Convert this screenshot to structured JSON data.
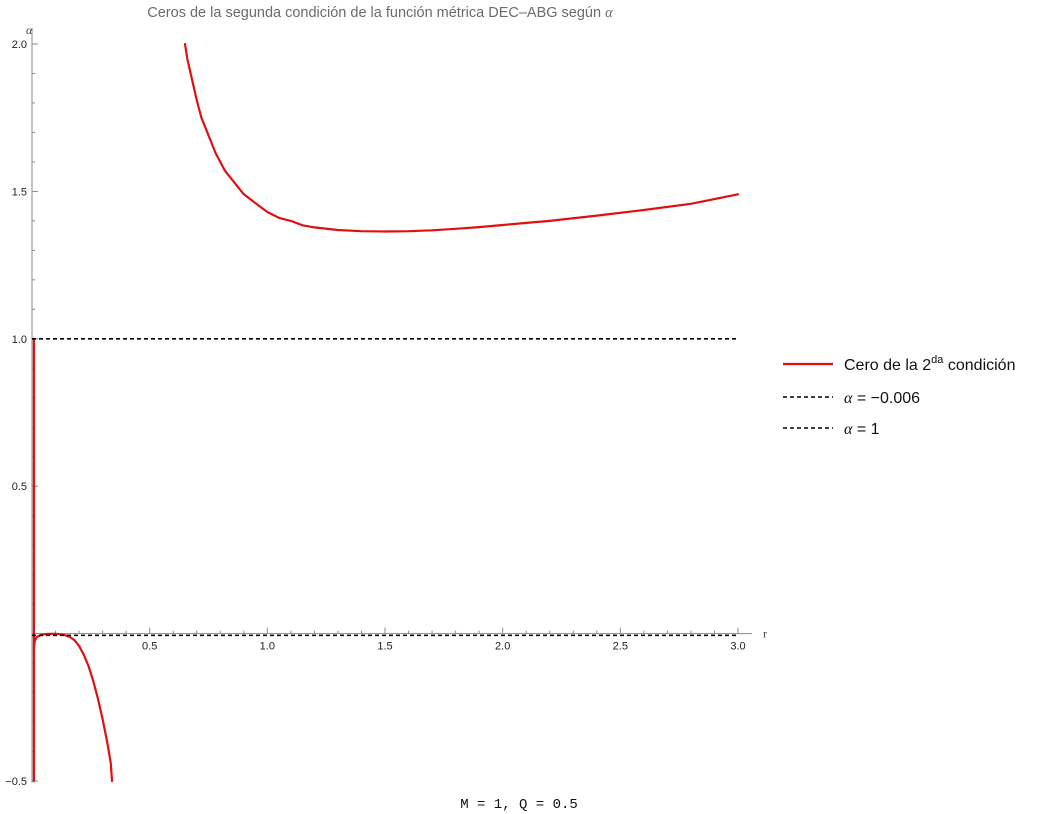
{
  "chart_data": {
    "type": "line",
    "title_text": "Ceros de la segunda condición de la función métrica DEC–ABG según ",
    "title_symbol": "α",
    "xlabel": "r",
    "ylabel": "α",
    "xlim": [
      0,
      3.0
    ],
    "ylim": [
      -0.5,
      2.0
    ],
    "x_ticks": [
      {
        "value": 0.5,
        "label": "0.5"
      },
      {
        "value": 1.0,
        "label": "1.0"
      },
      {
        "value": 1.5,
        "label": "1.5"
      },
      {
        "value": 2.0,
        "label": "2.0"
      },
      {
        "value": 2.5,
        "label": "2.5"
      },
      {
        "value": 3.0,
        "label": "3.0"
      }
    ],
    "y_ticks": [
      {
        "value": -0.5,
        "label": "-0.5"
      },
      {
        "value": 0.5,
        "label": "0.5"
      },
      {
        "value": 1.0,
        "label": "1.0"
      },
      {
        "value": 1.5,
        "label": "1.5"
      },
      {
        "value": 2.0,
        "label": "2.0"
      }
    ],
    "series": [
      {
        "name": "Cero de la 2da condición",
        "color": "#e01010",
        "style": "solid",
        "segments": [
          [
            [
              0.65,
              2.0
            ],
            [
              0.66,
              1.95
            ],
            [
              0.68,
              1.88
            ],
            [
              0.7,
              1.81
            ],
            [
              0.72,
              1.75
            ],
            [
              0.75,
              1.69
            ],
            [
              0.78,
              1.63
            ],
            [
              0.82,
              1.57
            ],
            [
              0.86,
              1.53
            ],
            [
              0.9,
              1.49
            ],
            [
              0.95,
              1.46
            ],
            [
              1.0,
              1.43
            ],
            [
              1.05,
              1.41
            ],
            [
              1.1,
              1.4
            ],
            [
              1.15,
              1.385
            ],
            [
              1.2,
              1.378
            ],
            [
              1.3,
              1.369
            ],
            [
              1.4,
              1.365
            ],
            [
              1.5,
              1.364
            ],
            [
              1.6,
              1.365
            ],
            [
              1.7,
              1.368
            ],
            [
              1.8,
              1.373
            ],
            [
              1.9,
              1.379
            ],
            [
              2.0,
              1.386
            ],
            [
              2.2,
              1.4
            ],
            [
              2.4,
              1.418
            ],
            [
              2.6,
              1.437
            ],
            [
              2.8,
              1.458
            ],
            [
              3.0,
              1.49
            ]
          ],
          [
            [
              0.008,
              1.0
            ],
            [
              0.008,
              0.5
            ],
            [
              0.008,
              0.0
            ],
            [
              0.008,
              -0.5
            ]
          ],
          [
            [
              0.008,
              -0.05
            ],
            [
              0.012,
              -0.025
            ],
            [
              0.02,
              -0.012
            ],
            [
              0.04,
              -0.004
            ],
            [
              0.06,
              -0.0015
            ],
            [
              0.08,
              -0.001
            ],
            [
              0.1,
              -0.001
            ],
            [
              0.12,
              -0.002
            ],
            [
              0.14,
              -0.005
            ],
            [
              0.16,
              -0.011
            ],
            [
              0.18,
              -0.022
            ],
            [
              0.2,
              -0.042
            ],
            [
              0.22,
              -0.072
            ],
            [
              0.24,
              -0.11
            ],
            [
              0.26,
              -0.16
            ],
            [
              0.28,
              -0.22
            ],
            [
              0.3,
              -0.29
            ],
            [
              0.32,
              -0.37
            ],
            [
              0.335,
              -0.44
            ],
            [
              0.34,
              -0.5
            ]
          ]
        ]
      },
      {
        "name": "α = −0.006",
        "color": "#000000",
        "style": "dashed",
        "y": -0.006,
        "x_range": [
          0,
          3.0
        ]
      },
      {
        "name": "α = 1",
        "color": "#000000",
        "style": "dashed",
        "y": 1.0,
        "x_range": [
          0,
          3.0
        ]
      }
    ],
    "legend": {
      "placement": "right",
      "entries": [
        {
          "text": "Cero de la 2",
          "sup": "da",
          "suffix": " condición",
          "style": "solid",
          "color": "#e01010"
        },
        {
          "symbol": "α",
          "text": " = −0.006",
          "style": "dashed",
          "color": "#000000"
        },
        {
          "symbol": "α",
          "text": " = 1",
          "style": "dashed",
          "color": "#000000"
        }
      ]
    },
    "footer": "M = 1, Q = 0.5",
    "grid": false
  }
}
